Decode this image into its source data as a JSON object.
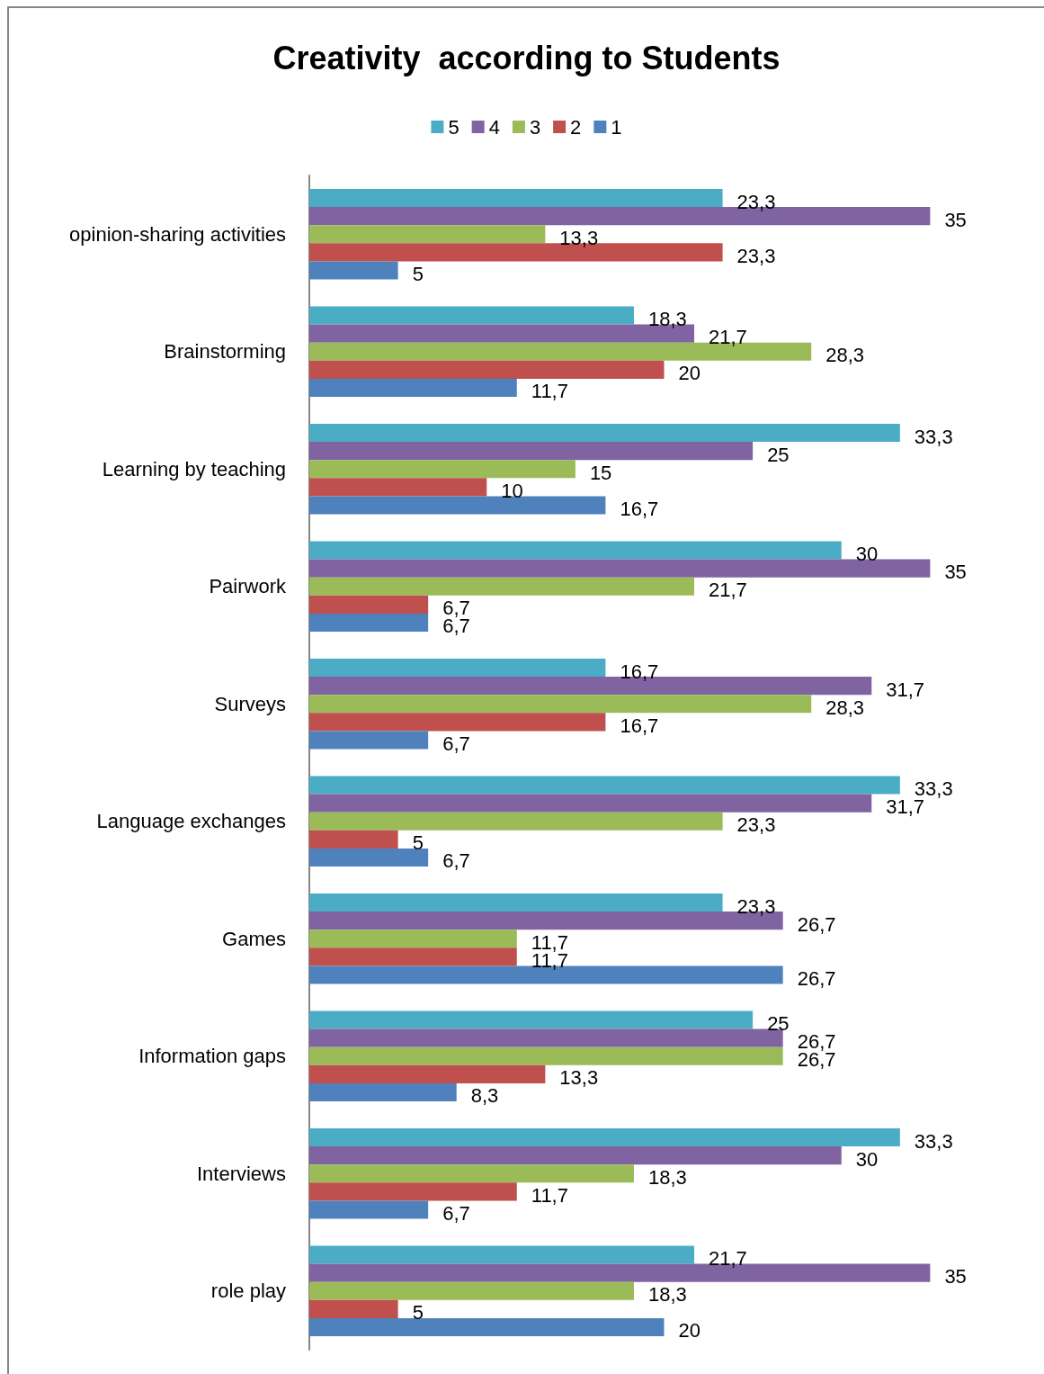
{
  "chart_data": {
    "type": "bar",
    "orientation": "horizontal",
    "title": "Creativity  according to Students",
    "categories": [
      "opinion-sharing activities",
      "Brainstorming",
      "Learning by teaching",
      "Pairwork",
      "Surveys",
      "Language exchanges",
      "Games",
      "Information gaps",
      "Interviews",
      "role play"
    ],
    "series": [
      {
        "name": "5",
        "color": "#4bacc6",
        "values": [
          23.3,
          18.3,
          33.3,
          30,
          16.7,
          33.3,
          23.3,
          25,
          33.3,
          21.7
        ],
        "value_labels": [
          "23,3",
          "18,3",
          "33,3",
          "30",
          "16,7",
          "33,3",
          "23,3",
          "25",
          "33,3",
          "21,7"
        ]
      },
      {
        "name": "4",
        "color": "#8064a2",
        "values": [
          35,
          21.7,
          25,
          35,
          31.7,
          31.7,
          26.7,
          26.7,
          30,
          35
        ],
        "value_labels": [
          "35",
          "21,7",
          "25",
          "35",
          "31,7",
          "31,7",
          "26,7",
          "26,7",
          "30",
          "35"
        ]
      },
      {
        "name": "3",
        "color": "#9bbb59",
        "values": [
          13.3,
          28.3,
          15,
          21.7,
          28.3,
          23.3,
          11.7,
          26.7,
          18.3,
          18.3
        ],
        "value_labels": [
          "13,3",
          "28,3",
          "15",
          "21,7",
          "28,3",
          "23,3",
          "11,7",
          "26,7",
          "18,3",
          "18,3"
        ]
      },
      {
        "name": "2",
        "color": "#c0504d",
        "values": [
          23.3,
          20,
          10,
          6.7,
          16.7,
          5,
          11.7,
          13.3,
          11.7,
          5
        ],
        "value_labels": [
          "23,3",
          "20",
          "10",
          "6,7",
          "16,7",
          "5",
          "11,7",
          "13,3",
          "11,7",
          "5"
        ]
      },
      {
        "name": "1",
        "color": "#4f81bd",
        "values": [
          5,
          11.7,
          16.7,
          6.7,
          6.7,
          6.7,
          26.7,
          8.3,
          6.7,
          20
        ],
        "value_labels": [
          "5",
          "11,7",
          "16,7",
          "6,7",
          "6,7",
          "6,7",
          "26,7",
          "8,3",
          "6,7",
          "20"
        ]
      }
    ],
    "legend": "top"
  }
}
